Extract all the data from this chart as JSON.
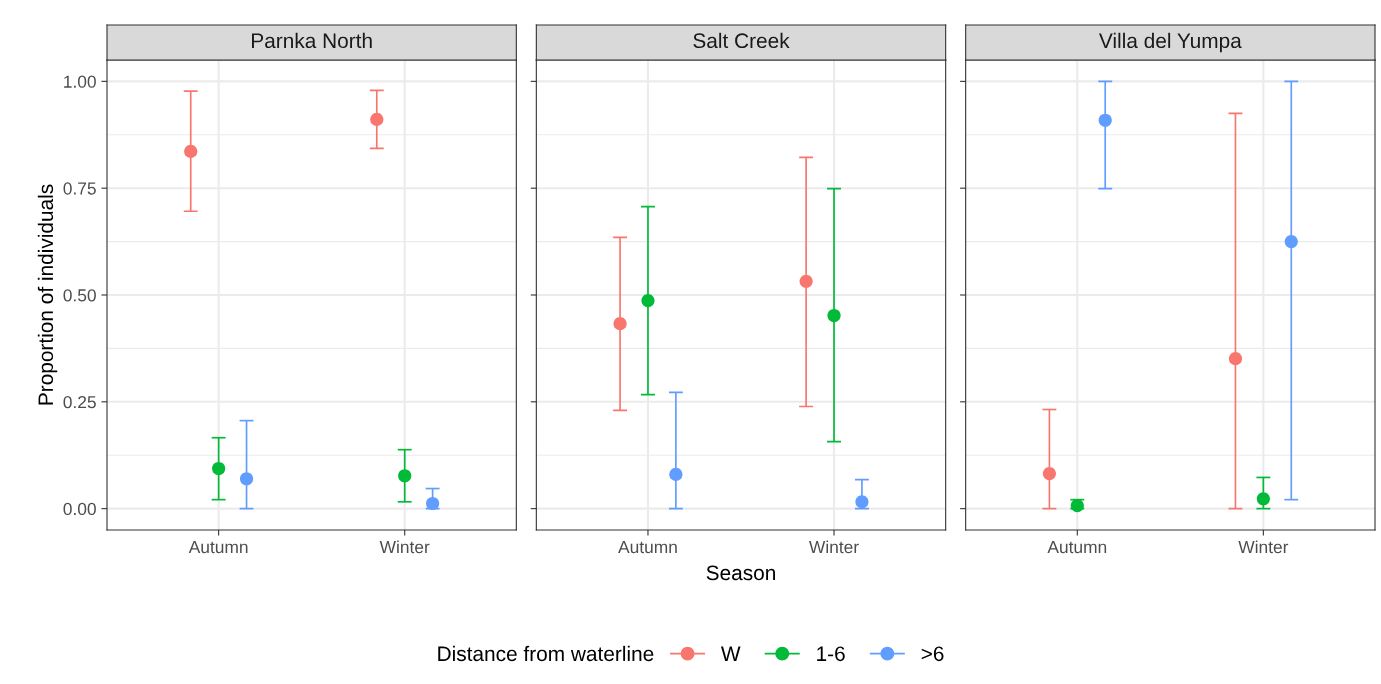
{
  "chart_data": [
    {
      "type": "scatter",
      "title": "Parnka North",
      "ylabel": "Proportion of individuals",
      "categories": [
        "Autumn",
        "Winter"
      ],
      "ylim": [
        -0.05,
        1.05
      ],
      "yticks": [
        {
          "value": 0,
          "label": "0.00"
        },
        {
          "value": 0.25,
          "label": "0.25"
        },
        {
          "value": 0.5,
          "label": "0.50"
        },
        {
          "value": 0.75,
          "label": "0.75"
        },
        {
          "value": 1,
          "label": "1.00"
        }
      ],
      "grid": true,
      "marker": "circle",
      "legend": "bottom",
      "legend_title": "Distance from waterline",
      "series": [
        {
          "name": "W",
          "color": "#f8766d",
          "values": [
            0.836,
            0.911
          ],
          "errors": [
            [
              0.696,
              0.977
            ],
            [
              0.843,
              0.979
            ]
          ]
        },
        {
          "name": "1-6",
          "color": "#00ba38",
          "values": [
            0.094,
            0.077
          ],
          "errors": [
            [
              0.021,
              0.166
            ],
            [
              0.016,
              0.138
            ]
          ]
        },
        {
          "name": ">6",
          "color": "#619cff",
          "values": [
            0.07,
            0.012
          ],
          "errors": [
            [
              0,
              0.206
            ],
            [
              0,
              0.047
            ]
          ]
        }
      ]
    },
    {
      "type": "scatter",
      "title": "Salt Creek",
      "xlabel": "Season",
      "categories": [
        "Autumn",
        "Winter"
      ],
      "ylim": [
        -0.05,
        1.05
      ],
      "yticks": [
        {
          "value": 0,
          "label": null
        },
        {
          "value": 0.25,
          "label": null
        },
        {
          "value": 0.5,
          "label": null
        },
        {
          "value": 0.75,
          "label": null
        },
        {
          "value": 1,
          "label": null
        }
      ],
      "tick_labels": "x",
      "grid": true,
      "marker": "circle",
      "series": [
        {
          "color": "#f8766d",
          "values": [
            0.433,
            0.532
          ],
          "errors": [
            [
              0.23,
              0.635
            ],
            [
              0.239,
              0.822
            ]
          ]
        },
        {
          "color": "#00ba38",
          "values": [
            0.487,
            0.452
          ],
          "errors": [
            [
              0.267,
              0.707
            ],
            [
              0.157,
              0.749
            ]
          ]
        },
        {
          "color": "#619cff",
          "values": [
            0.08,
            0.016
          ],
          "errors": [
            [
              0,
              0.272
            ],
            [
              0,
              0.068
            ]
          ]
        }
      ]
    },
    {
      "type": "scatter",
      "title": "Villa del Yumpa",
      "categories": [
        "Autumn",
        "Winter"
      ],
      "ylim": [
        -0.05,
        1.05
      ],
      "yticks": [
        {
          "value": 0,
          "label": null
        },
        {
          "value": 0.25,
          "label": null
        },
        {
          "value": 0.5,
          "label": null
        },
        {
          "value": 0.75,
          "label": null
        },
        {
          "value": 1,
          "label": null
        }
      ],
      "tick_labels": "x",
      "grid": true,
      "marker": "circle",
      "series": [
        {
          "color": "#f8766d",
          "values": [
            0.082,
            0.351
          ],
          "errors": [
            [
              0,
              0.232
            ],
            [
              0,
              0.925
            ]
          ]
        },
        {
          "color": "#00ba38",
          "values": [
            0.007,
            0.023
          ],
          "errors": [
            [
              0,
              0.021
            ],
            [
              0,
              0.073
            ]
          ]
        },
        {
          "color": "#619cff",
          "values": [
            0.909,
            0.625
          ],
          "errors": [
            [
              0.749,
              1.0
            ],
            [
              0.021,
              1.0
            ]
          ]
        }
      ]
    }
  ]
}
